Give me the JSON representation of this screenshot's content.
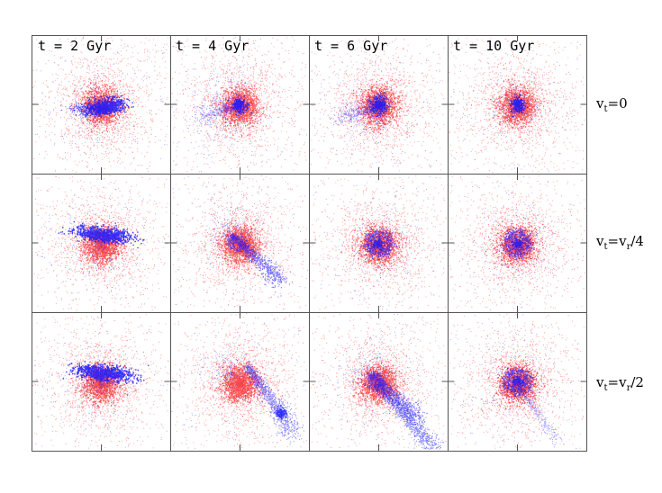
{
  "columns": [
    {
      "label": "t = 2 Gyr",
      "time_gyr": 2
    },
    {
      "label": "t = 4 Gyr",
      "time_gyr": 4
    },
    {
      "label": "t = 6 Gyr",
      "time_gyr": 6
    },
    {
      "label": "t = 10 Gyr",
      "time_gyr": 10
    }
  ],
  "rows": [
    {
      "label_main": "v",
      "label_sub": "t",
      "label_rest": "=0"
    },
    {
      "label_main": "v",
      "label_sub": "t",
      "label_rest": "=v",
      "label_sub2": "r",
      "label_tail": "/4"
    },
    {
      "label_main": "v",
      "label_sub": "t",
      "label_rest": "=v",
      "label_sub2": "r",
      "label_tail": "/2"
    }
  ],
  "colors": {
    "host": "#ff2020",
    "satellite": "#1a1aff",
    "frame": "#555555"
  },
  "panels": [
    [
      {
        "satellite_shape": "core-elongated",
        "tidal_stream": "short-left"
      },
      {
        "satellite_shape": "diffuse-core",
        "tidal_stream": "left-wisp"
      },
      {
        "satellite_shape": "spiral-core",
        "tidal_stream": "left-wisp"
      },
      {
        "satellite_shape": "compact-core",
        "tidal_stream": "none"
      }
    ],
    [
      {
        "satellite_shape": "elongated-bar",
        "tidal_stream": "short"
      },
      {
        "satellite_shape": "stream",
        "tidal_stream": "down-right"
      },
      {
        "satellite_shape": "ring",
        "tidal_stream": "diffuse"
      },
      {
        "satellite_shape": "ring",
        "tidal_stream": "none"
      }
    ],
    [
      {
        "satellite_shape": "elongated-bar",
        "tidal_stream": "short"
      },
      {
        "satellite_shape": "stream-clump",
        "tidal_stream": "long-down-right"
      },
      {
        "satellite_shape": "stream",
        "tidal_stream": "long-down-right"
      },
      {
        "satellite_shape": "ring",
        "tidal_stream": "faint-down-right"
      }
    ]
  ]
}
